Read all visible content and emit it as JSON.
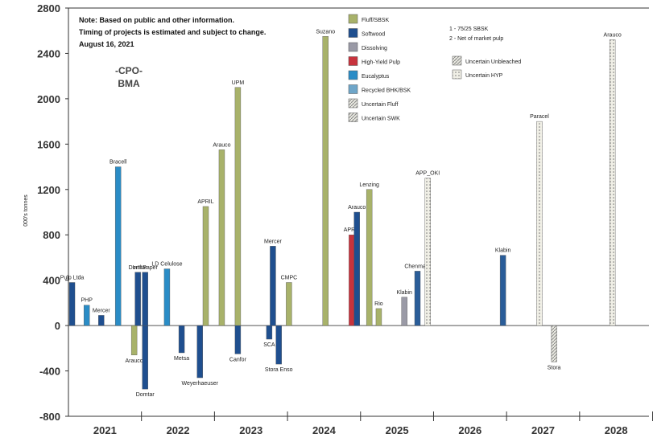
{
  "chart_data": {
    "type": "bar",
    "title": "",
    "ylabel": "000's tonnes",
    "ylim": [
      -800,
      2800
    ],
    "y_ticks": [
      "2800",
      "2400",
      "2000",
      "1600",
      "1200",
      "800",
      "400",
      "0",
      "-400",
      "-800"
    ],
    "x_ticks": [
      "2021",
      "2022",
      "2023",
      "2024",
      "2025",
      "2026",
      "2027",
      "2028"
    ],
    "notes": [
      "Note: Based on public and other information.",
      "Timing of projects is estimated and subject to change.",
      "August 16, 2021"
    ],
    "logo": {
      "symbol": "-CPO-",
      "text": "BMA"
    },
    "footnotes": [
      "1 - 75/25 SBSK",
      "2 - Net of market pulp"
    ],
    "legend": [
      {
        "label": "Fluff/SBSK",
        "color": "#a8b26a",
        "pattern": "solid"
      },
      {
        "label": "Softwood",
        "color": "#1f4f8f",
        "pattern": "solid"
      },
      {
        "label": "Dissolving",
        "color": "#9a9aa6",
        "pattern": "solid"
      },
      {
        "label": "High-Yield Pulp",
        "color": "#c8333d",
        "pattern": "solid"
      },
      {
        "label": "Eucalyptus",
        "color": "#2a8cc6",
        "pattern": "solid"
      },
      {
        "label": "Recycled BHK/BSK",
        "color": "#6fa6c9",
        "pattern": "solid"
      },
      {
        "label": "Uncertain Fluff",
        "color": "#cfcfc6",
        "pattern": "hatch"
      },
      {
        "label": "Uncertain SWK",
        "color": "#2a5d99",
        "pattern": "hatch"
      },
      {
        "label": "Uncertain Unbleached",
        "color": "#888888",
        "pattern": "hatch"
      },
      {
        "label": "Uncertain HYP",
        "color": "#bbb",
        "pattern": "dots"
      }
    ],
    "series": [
      {
        "label": "Pulp Ltda",
        "x": 2020.55,
        "value": 380,
        "color": "#1f4f8f"
      },
      {
        "label": "PHP",
        "x": 2020.75,
        "value": 180,
        "color": "#2a8cc6"
      },
      {
        "label": "Mercer",
        "x": 2020.95,
        "value": 90,
        "color": "#1f4f8f"
      },
      {
        "label": "Bracell",
        "x": 2021.18,
        "value": 1400,
        "color": "#2a8cc6"
      },
      {
        "label": "Arauco",
        "x": 2021.4,
        "value": -260,
        "color": "#a8b26a"
      },
      {
        "label": "Domtar",
        "x": 2021.45,
        "value": 470,
        "color": "#1f4f8f"
      },
      {
        "label": "Domtar",
        "x": 2021.55,
        "value": -560,
        "color": "#1f4f8f"
      },
      {
        "label": "Int'l Paper",
        "x": 2021.55,
        "value": 470,
        "color": "#1f4f8f"
      },
      {
        "label": "LD Celulose",
        "x": 2021.85,
        "value": 500,
        "color": "#2a8cc6"
      },
      {
        "label": "Metsa",
        "x": 2022.05,
        "value": -240,
        "color": "#1f4f8f"
      },
      {
        "label": "Weyerhaeuser",
        "x": 2022.3,
        "value": -460,
        "color": "#1f4f8f"
      },
      {
        "label": "APRIL",
        "x": 2022.38,
        "value": 1050,
        "color": "#a8b26a"
      },
      {
        "label": "Arauco",
        "x": 2022.6,
        "value": 1550,
        "color": "#a8b26a"
      },
      {
        "label": "UPM",
        "x": 2022.82,
        "value": 2100,
        "color": "#a8b26a"
      },
      {
        "label": "Canfor",
        "x": 2022.82,
        "value": -250,
        "color": "#1f4f8f"
      },
      {
        "label": "Mercer",
        "x": 2023.3,
        "value": 700,
        "color": "#1f4f8f"
      },
      {
        "label": "SCA",
        "x": 2023.25,
        "value": -120,
        "color": "#1f4f8f"
      },
      {
        "label": "Stora Enso",
        "x": 2023.38,
        "value": -340,
        "color": "#1f4f8f"
      },
      {
        "label": "CMPC",
        "x": 2023.52,
        "value": 380,
        "color": "#a8b26a"
      },
      {
        "label": "Suzano",
        "x": 2024.02,
        "value": 2550,
        "color": "#a8b26a"
      },
      {
        "label": "APRIL",
        "x": 2024.38,
        "value": 800,
        "color": "#c8333d"
      },
      {
        "label": "Arauco",
        "x": 2024.45,
        "value": 1000,
        "color": "#1f4f8f"
      },
      {
        "label": "Lenzing",
        "x": 2024.62,
        "value": 1200,
        "color": "#a8b26a"
      },
      {
        "label": "Rio",
        "x": 2024.75,
        "value": 150,
        "color": "#a8b26a"
      },
      {
        "label": "Klabin",
        "x": 2025.1,
        "value": 250,
        "color": "#9a9aa6"
      },
      {
        "label": "Chenmark",
        "x": 2025.28,
        "value": 480,
        "color": "#2a5d99"
      },
      {
        "label": "APP_OKI",
        "x": 2025.42,
        "value": 1300,
        "color": "#cfcfc6"
      },
      {
        "label": "Klabin",
        "x": 2026.45,
        "value": 620,
        "color": "#2a5d99"
      },
      {
        "label": "Paracel",
        "x": 2026.95,
        "value": 1800,
        "color": "#cfcfc6"
      },
      {
        "label": "Stora",
        "x": 2027.15,
        "value": -320,
        "color": "#ffffff"
      },
      {
        "label": "Arauco",
        "x": 2027.95,
        "value": 2520,
        "color": "#cfcfc6"
      }
    ]
  }
}
